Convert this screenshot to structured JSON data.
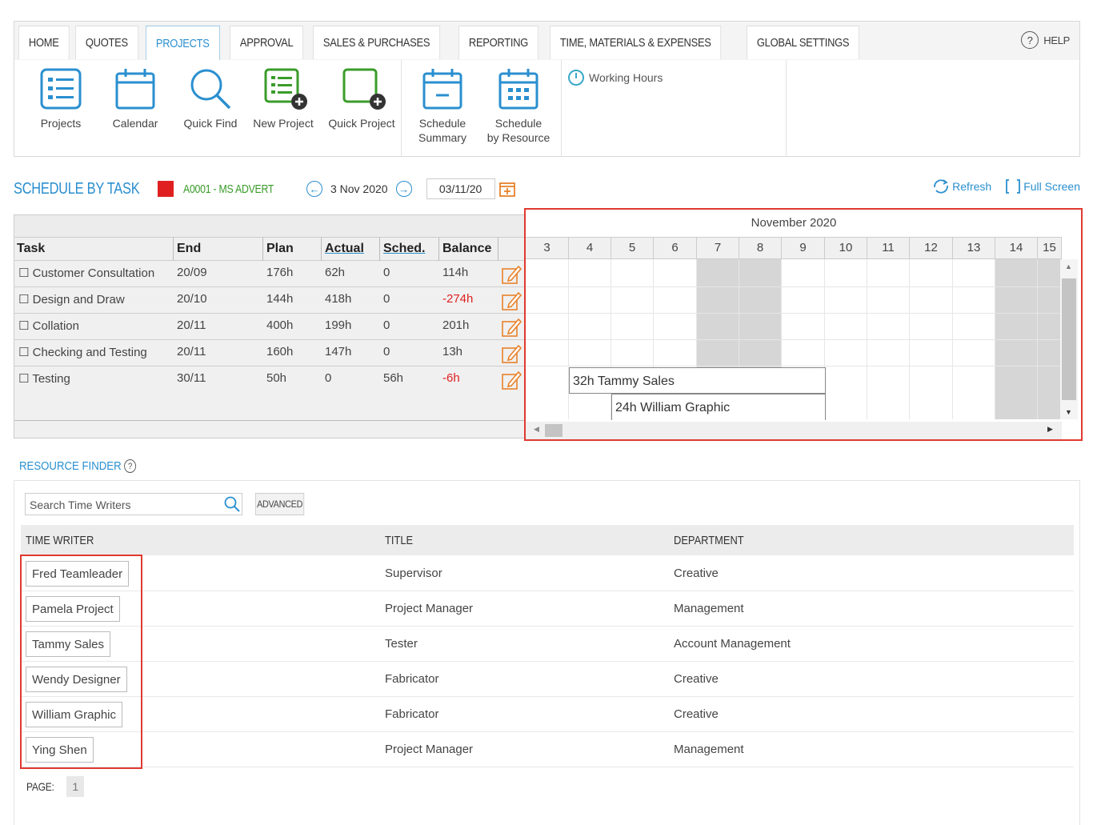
{
  "nav": {
    "tabs": [
      {
        "label": "HOME"
      },
      {
        "label": "QUOTES"
      },
      {
        "label": "PROJECTS"
      },
      {
        "label": "APPROVAL"
      },
      {
        "label": "SALES & PURCHASES"
      },
      {
        "label": "REPORTING"
      },
      {
        "label": "TIME, MATERIALS & EXPENSES"
      },
      {
        "label": "GLOBAL SETTINGS"
      }
    ],
    "active_tab": "PROJECTS",
    "help_label": "HELP"
  },
  "ribbon": {
    "buttons": [
      {
        "label1": "Projects",
        "label2": ""
      },
      {
        "label1": "Calendar",
        "label2": ""
      },
      {
        "label1": "Quick Find",
        "label2": ""
      },
      {
        "label1": "New Project",
        "label2": ""
      },
      {
        "label1": "Quick Project",
        "label2": ""
      },
      {
        "label1": "Schedule",
        "label2": "Summary"
      },
      {
        "label1": "Schedule",
        "label2": "by Resource"
      }
    ],
    "working_hours": "Working Hours"
  },
  "schedule": {
    "title": "SCHEDULE BY TASK",
    "project": "A0001 - MS ADVERT",
    "date_label": "3 Nov 2020",
    "date_input": "03/11/20",
    "refresh": "Refresh",
    "full_screen": "Full Screen"
  },
  "tasks": {
    "headers": {
      "task": "Task",
      "end": "End",
      "plan": "Plan",
      "actual": "Actual",
      "sched": "Sched.",
      "balance": "Balance"
    },
    "rows": [
      {
        "task": "Customer Consultation",
        "end": "20/09",
        "plan": "176h",
        "actual": "62h",
        "sched": "0",
        "balance": "114h",
        "negative": false
      },
      {
        "task": "Design and Draw",
        "end": "20/10",
        "plan": "144h",
        "actual": "418h",
        "sched": "0",
        "balance": "-274h",
        "negative": true
      },
      {
        "task": "Collation",
        "end": "20/11",
        "plan": "400h",
        "actual": "199h",
        "sched": "0",
        "balance": "201h",
        "negative": false
      },
      {
        "task": "Checking and Testing",
        "end": "20/11",
        "plan": "160h",
        "actual": "147h",
        "sched": "0",
        "balance": "13h",
        "negative": false
      },
      {
        "task": "Testing",
        "end": "30/11",
        "plan": "50h",
        "actual": "0",
        "sched": "56h",
        "balance": "-6h",
        "negative": true
      }
    ]
  },
  "gantt": {
    "month": "November 2020",
    "days": [
      "3",
      "4",
      "5",
      "6",
      "7",
      "8",
      "9",
      "10",
      "11",
      "12",
      "13",
      "14",
      "15"
    ],
    "bars": [
      {
        "label": "32h Tammy Sales"
      },
      {
        "label": "24h William Graphic"
      }
    ]
  },
  "resource_finder": {
    "title": "RESOURCE FINDER",
    "search_placeholder": "Search Time Writers",
    "advanced": "ADVANCED",
    "headers": {
      "writer": "TIME WRITER",
      "title": "TITLE",
      "department": "DEPARTMENT"
    },
    "rows": [
      {
        "name": "Fred Teamleader",
        "title": "Supervisor",
        "department": "Creative"
      },
      {
        "name": "Pamela Project",
        "title": "Project Manager",
        "department": "Management"
      },
      {
        "name": "Tammy Sales",
        "title": "Tester",
        "department": "Account Management"
      },
      {
        "name": "Wendy Designer",
        "title": "Fabricator",
        "department": "Creative"
      },
      {
        "name": "William Graphic",
        "title": "Fabricator",
        "department": "Creative"
      },
      {
        "name": "Ying Shen",
        "title": "Project Manager",
        "department": "Management"
      }
    ],
    "page_label": "PAGE:",
    "page_number": "1"
  },
  "colors": {
    "accent": "#2a8fcf",
    "green": "#3a9c2a",
    "red": "#e02020",
    "highlight": "#e03a2f"
  }
}
